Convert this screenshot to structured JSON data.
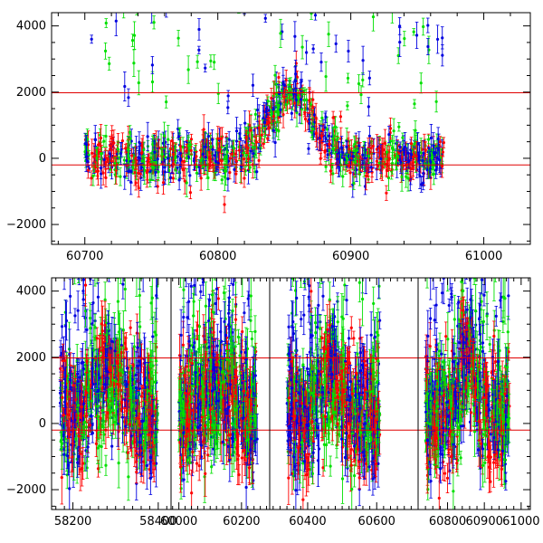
{
  "chart_data": [
    {
      "type": "scatter",
      "panel": "top",
      "xlim": [
        60675,
        61035
      ],
      "ylim": [
        -2600,
        4400
      ],
      "xticks": [
        60700,
        60800,
        60900,
        61000
      ],
      "xtick_labels": [
        "60700",
        "60800",
        "60900",
        "61000"
      ],
      "yticks": [
        -2000,
        0,
        2000,
        4000
      ],
      "ytick_labels": [
        "−2000",
        "0",
        "2000",
        "4000"
      ],
      "reference_lines_y": [
        1980,
        -200
      ],
      "reference_line_color": "#e00000",
      "colors": [
        "#00e000",
        "#0000e0",
        "#ff0000"
      ],
      "x_range_of_data": [
        60700,
        60970
      ],
      "data_gaps": [],
      "peaks": [
        [
          60855,
          2000,
          22
        ]
      ],
      "noise_envelope": {
        "center": 0,
        "spread": 350,
        "error_bar": 250
      },
      "error_bars": true,
      "grid": false,
      "legend": "none"
    },
    {
      "type": "scatter",
      "panel": "bottom",
      "segments": [
        {
          "xlim": [
            58150,
            58430
          ],
          "xticks": [
            58200,
            58400
          ],
          "xtick_labels": [
            "58200",
            "58400"
          ],
          "data_range": [
            58170,
            58400
          ],
          "peaks": [
            [
              58280,
              1200,
              50
            ]
          ]
        },
        {
          "xlim": [
            59975,
            60290
          ],
          "xticks": [
            60000,
            60200
          ],
          "xtick_labels": [
            "60000",
            "60200"
          ],
          "data_range": [
            60000,
            60250
          ],
          "peaks": [
            [
              60120,
              900,
              60
            ]
          ]
        },
        {
          "xlim": [
            60290,
            60720
          ],
          "xticks": [
            60400,
            60600
          ],
          "xtick_labels": [
            "60400",
            "60600"
          ],
          "data_range": [
            60340,
            60610
          ],
          "peaks": [
            [
              60460,
              1200,
              40
            ]
          ]
        },
        {
          "xlim": [
            60720,
            61025
          ],
          "xticks": [
            60800,
            60900,
            61000
          ],
          "xtick_labels": [
            "60800",
            "60900",
            "61000"
          ],
          "data_range": [
            60740,
            60970
          ],
          "peaks": [
            [
              60855,
              2000,
              25
            ]
          ]
        }
      ],
      "ylim": [
        -2600,
        4400
      ],
      "yticks": [
        -2000,
        0,
        2000,
        4000
      ],
      "ytick_labels": [
        "−2000",
        "0",
        "2000",
        "4000"
      ],
      "reference_lines_y": [
        1980,
        -200
      ],
      "reference_line_color": "#e00000",
      "colors": [
        "#00e000",
        "#0000e0",
        "#ff0000"
      ],
      "noise_envelope": {
        "center": 300,
        "spread": 900,
        "error_bar": 450
      },
      "error_bars": true,
      "grid": false,
      "legend": "none"
    }
  ]
}
